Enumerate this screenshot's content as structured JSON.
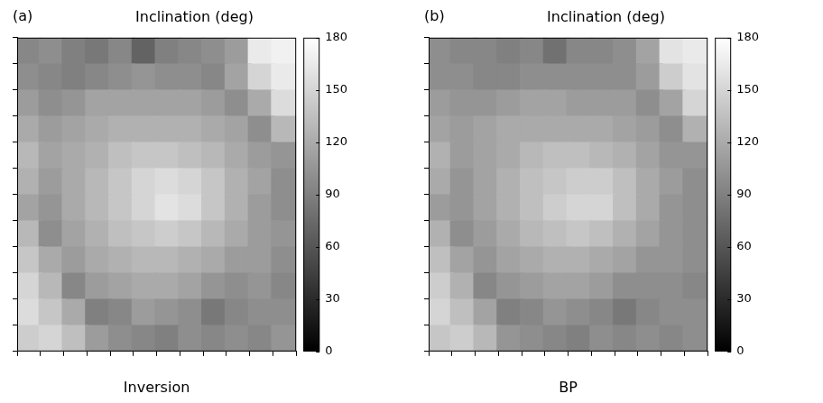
{
  "chart_data": [
    {
      "type": "heatmap",
      "panel": "(a)",
      "title": "Inclination (deg)",
      "xlabel": "Inversion",
      "tick_labels": false,
      "color": "gray",
      "cells": [
        [
          95,
          100,
          90,
          85,
          95,
          70,
          90,
          95,
          100,
          110,
          165,
          170
        ],
        [
          100,
          95,
          90,
          95,
          100,
          105,
          100,
          100,
          95,
          115,
          150,
          165
        ],
        [
          110,
          100,
          105,
          115,
          115,
          115,
          115,
          115,
          110,
          100,
          120,
          155
        ],
        [
          120,
          110,
          115,
          120,
          125,
          125,
          125,
          125,
          120,
          115,
          100,
          130
        ],
        [
          130,
          115,
          120,
          125,
          135,
          140,
          140,
          135,
          130,
          120,
          110,
          105
        ],
        [
          125,
          110,
          120,
          130,
          140,
          150,
          155,
          150,
          140,
          125,
          115,
          100
        ],
        [
          115,
          105,
          120,
          130,
          140,
          150,
          160,
          155,
          140,
          125,
          110,
          100
        ],
        [
          130,
          100,
          115,
          125,
          135,
          140,
          145,
          140,
          130,
          120,
          110,
          105
        ],
        [
          140,
          120,
          110,
          120,
          125,
          130,
          130,
          125,
          120,
          110,
          110,
          100
        ],
        [
          150,
          130,
          95,
          110,
          115,
          120,
          120,
          115,
          105,
          100,
          105,
          95
        ],
        [
          155,
          140,
          120,
          90,
          95,
          110,
          105,
          100,
          85,
          95,
          100,
          100
        ],
        [
          145,
          150,
          135,
          110,
          100,
          95,
          90,
          100,
          95,
          100,
          95,
          105
        ]
      ],
      "colorbar": {
        "range": [
          0,
          180
        ],
        "ticks": [
          0,
          30,
          60,
          90,
          120,
          150,
          180
        ]
      }
    },
    {
      "type": "heatmap",
      "panel": "(b)",
      "title": "Inclination (deg)",
      "xlabel": "BP",
      "tick_labels": false,
      "color": "gray",
      "cells": [
        [
          100,
          95,
          95,
          90,
          95,
          80,
          95,
          95,
          100,
          115,
          160,
          165
        ],
        [
          100,
          100,
          95,
          95,
          100,
          100,
          100,
          100,
          100,
          110,
          145,
          160
        ],
        [
          110,
          105,
          105,
          110,
          115,
          115,
          110,
          110,
          110,
          100,
          115,
          150
        ],
        [
          115,
          110,
          115,
          120,
          120,
          120,
          120,
          120,
          115,
          110,
          100,
          125
        ],
        [
          125,
          110,
          115,
          120,
          130,
          135,
          135,
          130,
          125,
          115,
          105,
          105
        ],
        [
          120,
          105,
          115,
          125,
          135,
          140,
          145,
          145,
          135,
          120,
          110,
          100
        ],
        [
          110,
          105,
          115,
          125,
          135,
          145,
          150,
          150,
          135,
          120,
          105,
          100
        ],
        [
          125,
          100,
          110,
          120,
          130,
          135,
          140,
          135,
          125,
          115,
          105,
          100
        ],
        [
          135,
          115,
          105,
          115,
          120,
          125,
          125,
          120,
          115,
          105,
          105,
          100
        ],
        [
          145,
          125,
          95,
          105,
          110,
          115,
          115,
          110,
          100,
          100,
          100,
          95
        ],
        [
          150,
          135,
          115,
          90,
          95,
          105,
          100,
          95,
          85,
          95,
          100,
          100
        ],
        [
          140,
          145,
          130,
          105,
          100,
          95,
          90,
          100,
          95,
          100,
          95,
          100
        ]
      ],
      "colorbar": {
        "range": [
          0,
          180
        ],
        "ticks": [
          0,
          30,
          60,
          90,
          120,
          150,
          180
        ]
      }
    }
  ]
}
